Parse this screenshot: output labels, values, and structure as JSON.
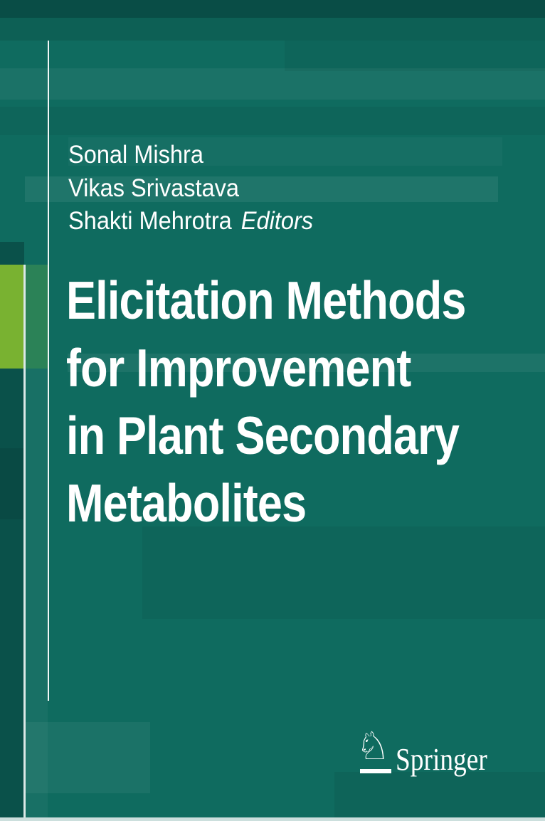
{
  "cover": {
    "editors": [
      "Sonal Mishra",
      "Vikas Srivastava",
      "Shakti Mehrotra"
    ],
    "editors_label": "Editors",
    "title": "Elicitation Methods for Improvement in Plant Secondary Metabolites",
    "title_lines": [
      "Elicitation Methods",
      "for Improvement",
      "in Plant Secondary",
      "Metabolites"
    ],
    "publisher": {
      "name": "Springer",
      "horse_glyph": "♘"
    },
    "colors": {
      "background_teal": "#0F6B5F",
      "top_band_dark": "#0A554C",
      "left_column_dark": "#0A5850",
      "accent_green": "#79B231",
      "rule_white": "#FFFFFF",
      "text_white": "#FFFFFF",
      "bottom_strip": "#CCDFDD"
    }
  }
}
